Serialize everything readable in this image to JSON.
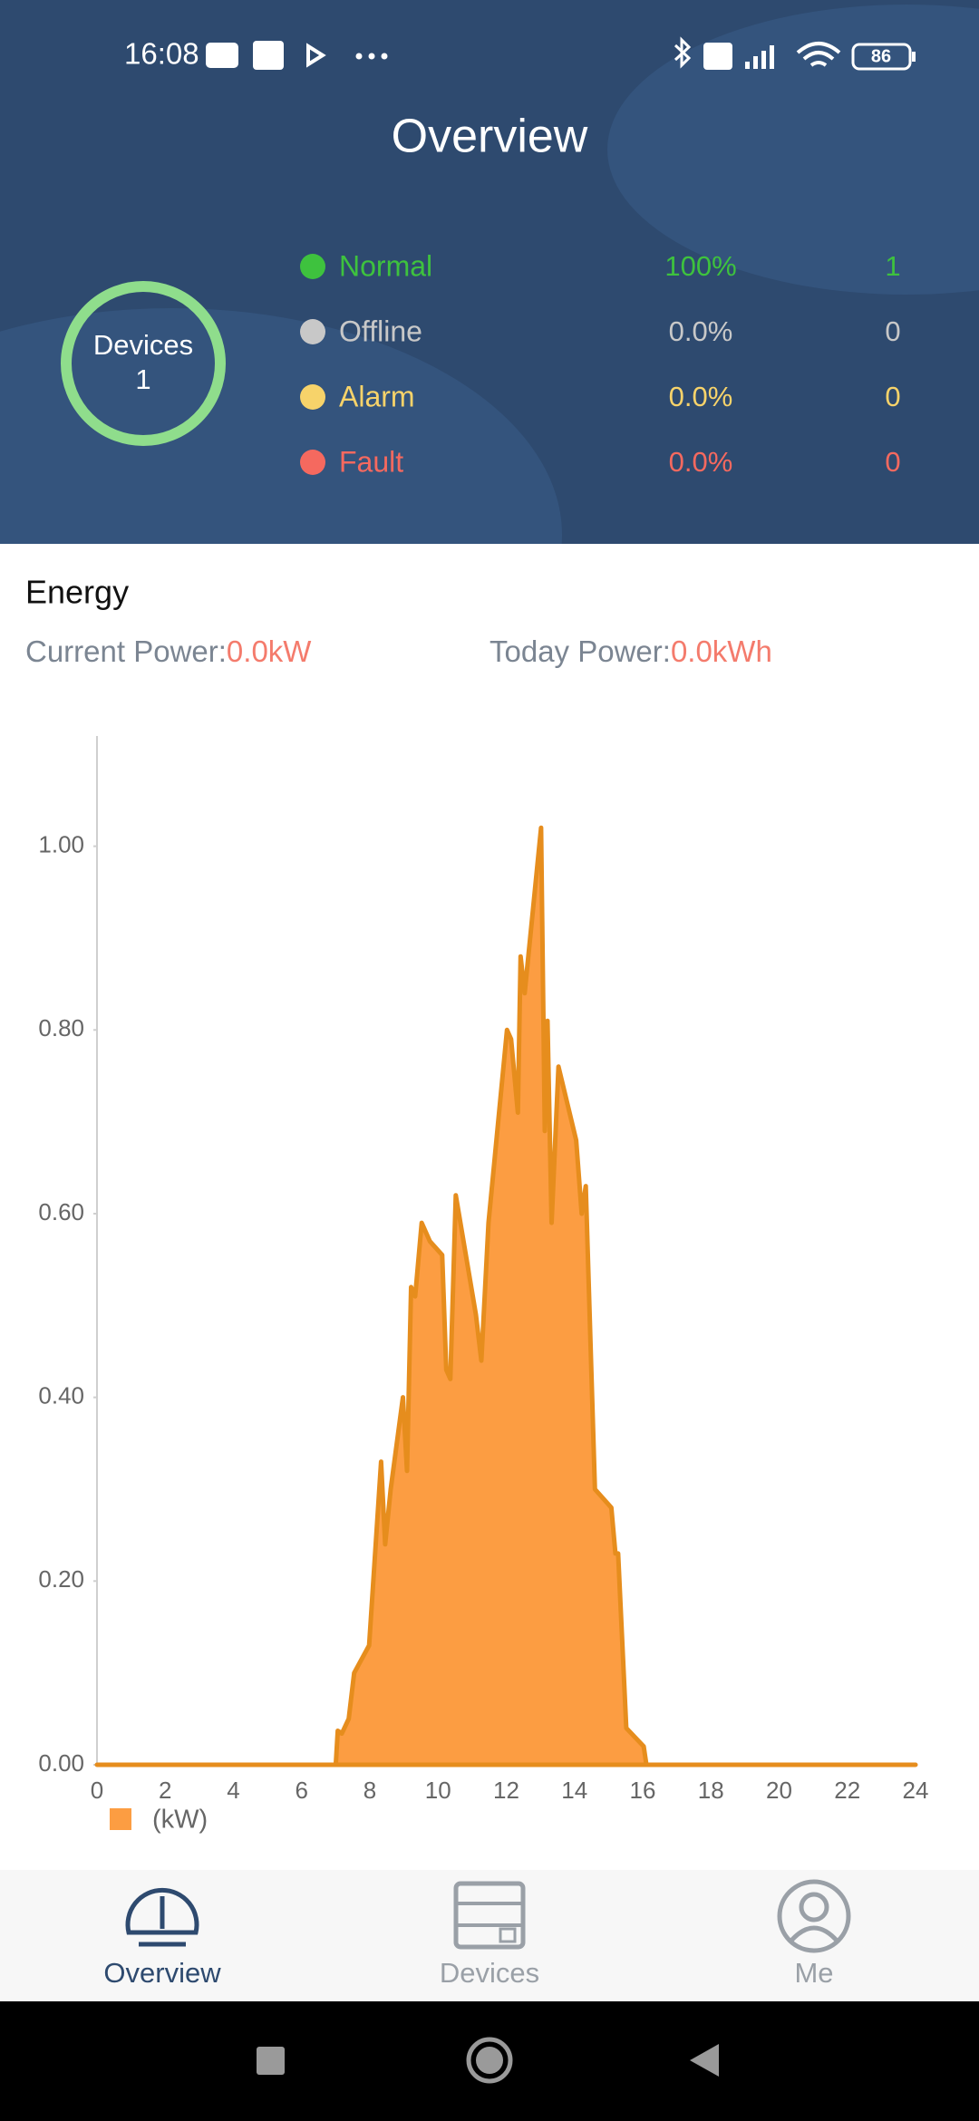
{
  "status_bar": {
    "time": "16:08",
    "battery": "86"
  },
  "header": {
    "title": "Overview"
  },
  "devices": {
    "label": "Devices",
    "count": 1
  },
  "statuses": [
    {
      "name": "Normal",
      "percent": "100%",
      "count": 1,
      "color": "#3ec23e"
    },
    {
      "name": "Offline",
      "percent": "0.0%",
      "count": 0,
      "color": "#c8c8c8"
    },
    {
      "name": "Alarm",
      "percent": "0.0%",
      "count": 0,
      "color": "#f7d36a"
    },
    {
      "name": "Fault",
      "percent": "0.0%",
      "count": 0,
      "color": "#f5695f"
    }
  ],
  "energy": {
    "title": "Energy",
    "current_label": "Current Power:",
    "current_value": "0.0kW",
    "today_label": "Today Power:",
    "today_value": "0.0kWh"
  },
  "chart_data": {
    "type": "area",
    "x": [
      0,
      7.0,
      7.06,
      7.18,
      7.38,
      7.54,
      7.98,
      8.33,
      8.45,
      8.61,
      8.97,
      9.09,
      9.21,
      9.33,
      9.52,
      9.76,
      10.12,
      10.24,
      10.36,
      10.52,
      11.11,
      11.27,
      11.48,
      12.02,
      12.14,
      12.34,
      12.42,
      12.54,
      13.02,
      13.13,
      13.21,
      13.33,
      13.53,
      14.05,
      14.21,
      14.33,
      14.6,
      15.08,
      15.2,
      15.28,
      15.52,
      16.03,
      16.11,
      24
    ],
    "series": [
      {
        "name": "(kW)",
        "color": "#fc9d42",
        "line_color": "#e68d1d",
        "values": [
          0,
          0,
          0.037,
          0.034,
          0.05,
          0.1,
          0.13,
          0.33,
          0.24,
          0.3,
          0.4,
          0.32,
          0.52,
          0.51,
          0.59,
          0.57,
          0.555,
          0.43,
          0.42,
          0.62,
          0.49,
          0.44,
          0.59,
          0.8,
          0.79,
          0.71,
          0.88,
          0.84,
          1.02,
          0.69,
          0.81,
          0.59,
          0.76,
          0.68,
          0.6,
          0.63,
          0.3,
          0.28,
          0.23,
          0.23,
          0.04,
          0.02,
          0,
          0
        ]
      }
    ],
    "xlim": [
      0,
      24
    ],
    "xticks": [
      0,
      2,
      4,
      6,
      8,
      10,
      12,
      14,
      16,
      18,
      20,
      22,
      24
    ],
    "ylim": [
      0,
      1.12
    ],
    "yticks": [
      {
        "value": 0,
        "label": "0.00"
      },
      {
        "value": 0.2,
        "label": "0.20"
      },
      {
        "value": 0.4,
        "label": "0.40"
      },
      {
        "value": 0.6,
        "label": "0.60"
      },
      {
        "value": 0.8,
        "label": "0.80"
      },
      {
        "value": 1.0,
        "label": "1.00"
      }
    ],
    "grid": false,
    "legend": "bottom-left"
  },
  "nav": [
    {
      "label": "Overview",
      "active": true
    },
    {
      "label": "Devices",
      "active": false
    },
    {
      "label": "Me",
      "active": false
    }
  ]
}
